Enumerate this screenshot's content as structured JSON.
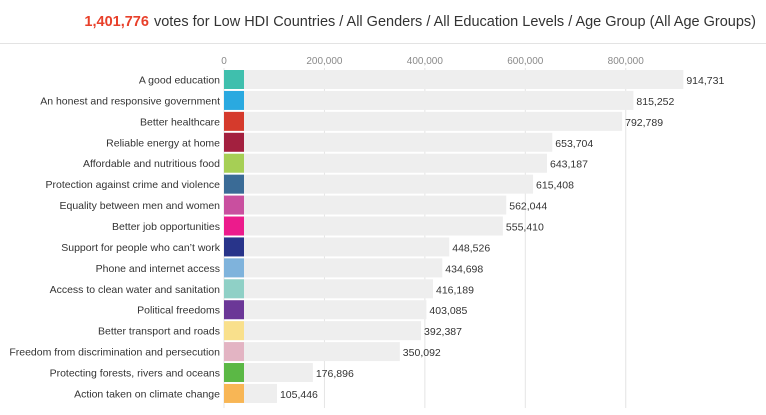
{
  "header": {
    "total_votes": "1,401,776",
    "description": "votes for Low HDI Countries / All Genders / All Education Levels / Age Group (All Age Groups)"
  },
  "chart_data": {
    "type": "bar",
    "orientation": "horizontal",
    "title": "1,401,776 votes for Low HDI Countries / All Genders / All Education Levels / Age Group (All Age Groups)",
    "xlim": [
      0,
      920000
    ],
    "x_ticks": [
      "0",
      "200,000",
      "400,000",
      "600,000",
      "800,000"
    ],
    "tick_values": [
      0,
      200000,
      400000,
      600000,
      800000
    ],
    "grid": true,
    "categories": [
      "A good education",
      "An honest and responsive government",
      "Better healthcare",
      "Reliable energy at home",
      "Affordable and nutritious food",
      "Protection against crime and violence",
      "Equality between men and women",
      "Better job opportunities",
      "Support for people who can’t work",
      "Phone and internet access",
      "Access to clean water and sanitation",
      "Political freedoms",
      "Better transport and roads",
      "Freedom from discrimination and persecution",
      "Protecting forests, rivers and oceans",
      "Action taken on climate change"
    ],
    "values": [
      914731,
      815252,
      792789,
      653704,
      643187,
      615408,
      562044,
      555410,
      448526,
      434698,
      416189,
      403085,
      392387,
      350092,
      176896,
      105446
    ],
    "value_labels": [
      "914,731",
      "815,252",
      "792,789",
      "653,704",
      "643,187",
      "615,408",
      "562,044",
      "555,410",
      "448,526",
      "434,698",
      "416,189",
      "403,085",
      "392,387",
      "350,092",
      "176,896",
      "105,446"
    ],
    "icon_colors": [
      "#3fbfad",
      "#2aa9e0",
      "#d53a2c",
      "#a3203f",
      "#a6cf55",
      "#3a6b96",
      "#c94f9f",
      "#ec1b8c",
      "#28348a",
      "#7fb3dc",
      "#8fd0c6",
      "#6b3797",
      "#f9e08c",
      "#e3b4c3",
      "#5bb845",
      "#f8b655"
    ],
    "bar_color": "#eeeeee"
  }
}
